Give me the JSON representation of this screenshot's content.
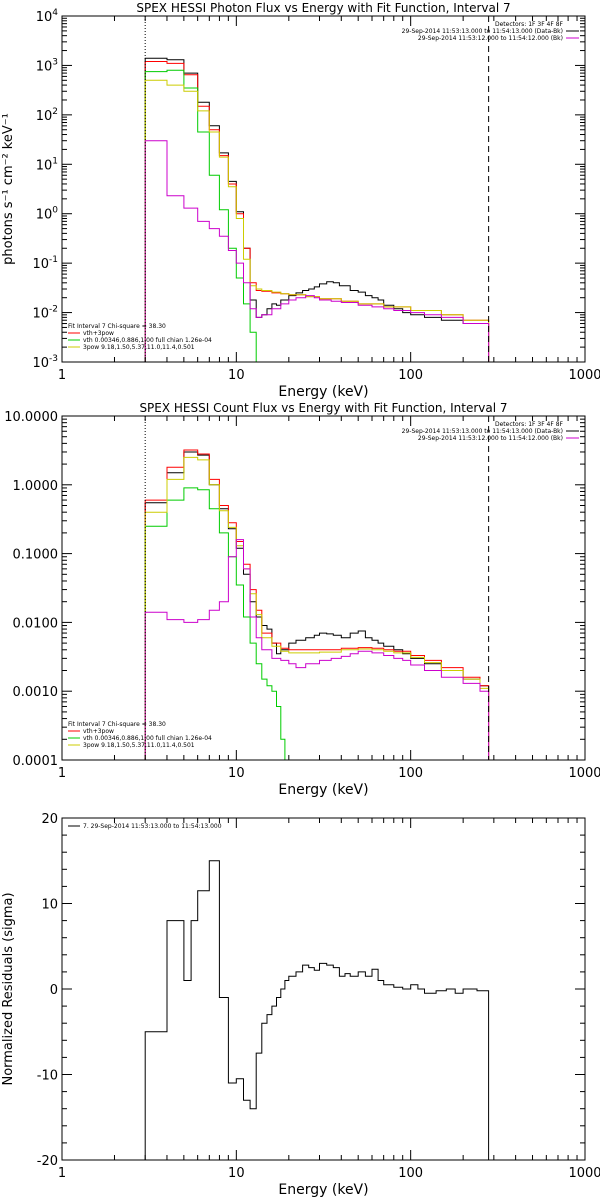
{
  "chart_data": [
    {
      "type": "line",
      "title": "SPEX HESSI Photon Flux vs Energy with Fit Function, Interval 7",
      "xlabel": "Energy (keV)",
      "ylabel": "photons s⁻¹ cm⁻² keV⁻¹",
      "xscale": "log",
      "yscale": "log",
      "xlim": [
        1,
        1000
      ],
      "ylim": [
        0.001,
        10000
      ],
      "xticks": [
        {
          "v": 1,
          "label": "1"
        },
        {
          "v": 10,
          "label": "10"
        },
        {
          "v": 100,
          "label": "100"
        },
        {
          "v": 1000,
          "label": "1000"
        }
      ],
      "yticks": [
        {
          "v": 0.001,
          "base": "10",
          "exp": "-3"
        },
        {
          "v": 0.01,
          "base": "10",
          "exp": "-2"
        },
        {
          "v": 0.1,
          "base": "10",
          "exp": "-1"
        },
        {
          "v": 1,
          "base": "10",
          "exp": "0"
        },
        {
          "v": 10,
          "base": "10",
          "exp": "1"
        },
        {
          "v": 100,
          "base": "10",
          "exp": "2"
        },
        {
          "v": 1000,
          "base": "10",
          "exp": "3"
        },
        {
          "v": 10000,
          "base": "10",
          "exp": "4"
        }
      ],
      "vlines": [
        {
          "x": 3.0,
          "color": "#000000",
          "style": "dotted"
        },
        {
          "x": 280,
          "color": "#000000",
          "style": "dashed"
        }
      ],
      "legend_top": {
        "position": "top-right",
        "header": "Detectors: 1F 3F 4F 8F",
        "entries": [
          {
            "text": "29-Sep-2014 11:53:13.000 to 11:54:13.000 (Data-Bk)",
            "color": "#000000"
          },
          {
            "text": "29-Sep-2014 11:53:12.000 to 11:54:12.000 (Bk)",
            "color": "#cc00cc"
          }
        ]
      },
      "legend_bottom": {
        "position": "bottom-left",
        "header": "Fit Interval 7   Chi-square = 38.30",
        "entries": [
          {
            "text": "vth+3pow",
            "color": "#ff0000"
          },
          {
            "text": "vth 0.00346,0.886,1.00  full chian 1.26e-04",
            "color": "#00cc00"
          },
          {
            "text": "3pow 9.18,1.50,5.37,11.0,11.4,0.501",
            "color": "#cccc00"
          }
        ]
      },
      "series": [
        {
          "color": "#000000",
          "edges": [
            3.0,
            4.0,
            5.0,
            6.0,
            7.0,
            8.0,
            9.0,
            10.0,
            11.0,
            12.0,
            13.0,
            14.0,
            15.0,
            16.0,
            17.0,
            18.0,
            20.0,
            22.0,
            24.0,
            26.0,
            28.0,
            30.0,
            33.0,
            36.0,
            39.0,
            42.0,
            45.0,
            50.0,
            55.0,
            60.0,
            65.0,
            70.0,
            80.0,
            90.0,
            100.0,
            120.0,
            150.0,
            200.0,
            280.0
          ],
          "values": [
            1400,
            1300,
            700,
            180,
            60,
            17,
            4.5,
            1.1,
            0.2,
            0.018,
            0.008,
            0.009,
            0.012,
            0.015,
            0.014,
            0.018,
            0.022,
            0.025,
            0.028,
            0.03,
            0.033,
            0.038,
            0.042,
            0.04,
            0.035,
            0.035,
            0.028,
            0.026,
            0.022,
            0.02,
            0.018,
            0.014,
            0.012,
            0.01,
            0.009,
            0.008,
            0.007,
            0.006
          ]
        },
        {
          "color": "#ff0000",
          "edges": [
            3.0,
            4.0,
            5.0,
            6.0,
            7.0,
            8.0,
            9.0,
            10.0,
            11.0,
            12.0,
            13.0,
            14.0,
            16.0,
            18.0,
            20.0,
            25.0,
            30.0,
            40.0,
            50.0,
            70.0,
            100.0,
            150.0,
            200.0,
            280.0
          ],
          "values": [
            1200,
            1100,
            650,
            150,
            50,
            15,
            4,
            1,
            0.2,
            0.04,
            0.028,
            0.027,
            0.025,
            0.024,
            0.023,
            0.021,
            0.019,
            0.017,
            0.015,
            0.013,
            0.011,
            0.009,
            0.007
          ]
        },
        {
          "color": "#00cc00",
          "edges": [
            3.0,
            4.0,
            5.0,
            6.0,
            7.0,
            8.0,
            9.0,
            10.0,
            11.0,
            12.0,
            13.0,
            14.0
          ],
          "values": [
            750,
            800,
            350,
            45,
            6,
            1.2,
            0.2,
            0.05,
            0.015,
            0.004,
            0.001
          ]
        },
        {
          "color": "#cccc00",
          "edges": [
            3.0,
            4.0,
            5.0,
            6.0,
            7.0,
            8.0,
            9.0,
            10.0,
            11.0,
            12.0,
            13.0,
            14.0,
            16.0,
            18.0,
            20.0,
            25.0,
            30.0,
            40.0,
            50.0,
            70.0,
            100.0,
            150.0,
            200.0,
            280.0
          ],
          "values": [
            500,
            400,
            300,
            120,
            45,
            14,
            3.5,
            0.8,
            0.12,
            0.035,
            0.03,
            0.028,
            0.026,
            0.024,
            0.023,
            0.021,
            0.019,
            0.017,
            0.015,
            0.013,
            0.011,
            0.009,
            0.007
          ]
        },
        {
          "color": "#cc00cc",
          "edges": [
            3.0,
            4.0,
            5.0,
            6.0,
            7.0,
            8.0,
            9.0,
            10.0,
            11.0,
            12.0,
            13.0,
            14.0,
            16.0,
            18.0,
            20.0,
            22.0,
            25.0,
            28.0,
            30.0,
            35.0,
            40.0,
            50.0,
            60.0,
            70.0,
            80.0,
            100.0,
            120.0,
            150.0,
            200.0,
            280.0
          ],
          "values": [
            30,
            2.3,
            1.3,
            0.7,
            0.5,
            0.35,
            0.18,
            0.1,
            0.04,
            0.012,
            0.008,
            0.009,
            0.012,
            0.015,
            0.018,
            0.02,
            0.022,
            0.02,
            0.018,
            0.017,
            0.016,
            0.014,
            0.013,
            0.012,
            0.011,
            0.01,
            0.009,
            0.008,
            0.006
          ]
        }
      ]
    },
    {
      "type": "line",
      "title": "SPEX HESSI Count Flux vs Energy with Fit Function, Interval 7",
      "xlabel": "Energy (keV)",
      "ylabel": "",
      "xscale": "log",
      "yscale": "log",
      "xlim": [
        1,
        1000
      ],
      "ylim": [
        0.0001,
        10
      ],
      "xticks": [
        {
          "v": 1,
          "label": "1"
        },
        {
          "v": 10,
          "label": "10"
        },
        {
          "v": 100,
          "label": "100"
        },
        {
          "v": 1000,
          "label": "1000"
        }
      ],
      "yticks": [
        {
          "v": 0.0001,
          "label": "0.0001"
        },
        {
          "v": 0.001,
          "label": "0.0010"
        },
        {
          "v": 0.01,
          "label": "0.0100"
        },
        {
          "v": 0.1,
          "label": "0.1000"
        },
        {
          "v": 1,
          "label": "1.0000"
        },
        {
          "v": 10,
          "label": "10.0000"
        }
      ],
      "vlines": [
        {
          "x": 3.0,
          "color": "#000000",
          "style": "dotted"
        },
        {
          "x": 280,
          "color": "#000000",
          "style": "dashed"
        }
      ],
      "legend_top": {
        "position": "top-right",
        "header": "Detectors: 1F 3F 4F 8F",
        "entries": [
          {
            "text": "29-Sep-2014 11:53:13.000 to 11:54:13.000 (Data-Bk)",
            "color": "#000000"
          },
          {
            "text": "29-Sep-2014 11:53:12.000 to 11:54:12.000 (Bk)",
            "color": "#cc00cc"
          }
        ]
      },
      "legend_bottom": {
        "position": "bottom-left",
        "header": "Fit Interval 7   Chi-square = 38.30",
        "entries": [
          {
            "text": "vth+3pow",
            "color": "#ff0000"
          },
          {
            "text": "vth 0.00346,0.886,1.00  full chian 1.26e-04",
            "color": "#00cc00"
          },
          {
            "text": "3pow 9.18,1.50,5.37,11.0,11.4,0.501",
            "color": "#cccc00"
          }
        ]
      },
      "series": [
        {
          "color": "#000000",
          "edges": [
            3.0,
            4.0,
            5.0,
            6.0,
            7.0,
            8.0,
            9.0,
            10.0,
            11.0,
            12.0,
            13.0,
            14.0,
            15.0,
            16.0,
            17.0,
            18.0,
            20.0,
            22.0,
            25.0,
            28.0,
            30.0,
            33.0,
            36.0,
            40.0,
            45.0,
            50.0,
            55.0,
            60.0,
            65.0,
            70.0,
            80.0,
            90.0,
            100.0,
            120.0,
            150.0,
            200.0,
            250.0,
            280.0
          ],
          "values": [
            0.55,
            1.5,
            3.0,
            2.7,
            1.0,
            0.45,
            0.23,
            0.12,
            0.05,
            0.02,
            0.012,
            0.009,
            0.008,
            0.005,
            0.0035,
            0.004,
            0.005,
            0.0055,
            0.006,
            0.0065,
            0.007,
            0.0068,
            0.0065,
            0.006,
            0.007,
            0.0075,
            0.006,
            0.0055,
            0.005,
            0.0045,
            0.004,
            0.0035,
            0.003,
            0.0025,
            0.002,
            0.0015,
            0.0012
          ]
        },
        {
          "color": "#ff0000",
          "edges": [
            3.0,
            4.0,
            5.0,
            6.0,
            7.0,
            8.0,
            9.0,
            10.0,
            11.0,
            12.0,
            13.0,
            14.0,
            16.0,
            18.0,
            20.0,
            25.0,
            30.0,
            40.0,
            50.0,
            60.0,
            70.0,
            80.0,
            100.0,
            120.0,
            150.0,
            200.0,
            250.0,
            280.0
          ],
          "values": [
            0.6,
            1.8,
            3.2,
            2.8,
            1.2,
            0.5,
            0.28,
            0.15,
            0.07,
            0.03,
            0.015,
            0.007,
            0.005,
            0.0042,
            0.004,
            0.004,
            0.004,
            0.0042,
            0.0043,
            0.0042,
            0.004,
            0.0038,
            0.0033,
            0.0028,
            0.0022,
            0.0016,
            0.0012
          ]
        },
        {
          "color": "#00cc00",
          "edges": [
            3.0,
            4.0,
            5.0,
            6.0,
            7.0,
            8.0,
            9.0,
            10.0,
            11.0,
            12.0,
            13.0,
            14.0,
            15.0,
            16.0,
            17.0,
            18.0,
            19.0,
            20.0
          ],
          "values": [
            0.25,
            0.6,
            0.9,
            0.85,
            0.45,
            0.2,
            0.09,
            0.035,
            0.012,
            0.005,
            0.0025,
            0.0015,
            0.0012,
            0.001,
            0.0006,
            0.0002,
            0.0001
          ]
        },
        {
          "color": "#cccc00",
          "edges": [
            3.0,
            4.0,
            5.0,
            6.0,
            7.0,
            8.0,
            9.0,
            10.0,
            11.0,
            12.0,
            13.0,
            14.0,
            16.0,
            18.0,
            20.0,
            25.0,
            30.0,
            40.0,
            50.0,
            60.0,
            70.0,
            80.0,
            100.0,
            120.0,
            150.0,
            200.0,
            250.0,
            280.0
          ],
          "values": [
            0.4,
            1.2,
            2.5,
            2.3,
            1.0,
            0.42,
            0.24,
            0.13,
            0.06,
            0.026,
            0.013,
            0.006,
            0.0045,
            0.0038,
            0.0036,
            0.0036,
            0.0037,
            0.004,
            0.0041,
            0.004,
            0.0038,
            0.0036,
            0.0031,
            0.0026,
            0.002,
            0.0015,
            0.0011
          ]
        },
        {
          "color": "#cc00cc",
          "edges": [
            3.0,
            4.0,
            5.0,
            6.0,
            7.0,
            8.0,
            9.0,
            10.0,
            11.0,
            12.0,
            13.0,
            14.0,
            16.0,
            18.0,
            20.0,
            22.0,
            25.0,
            30.0,
            35.0,
            40.0,
            45.0,
            50.0,
            60.0,
            70.0,
            80.0,
            90.0,
            100.0,
            120.0,
            150.0,
            200.0,
            250.0,
            280.0
          ],
          "values": [
            0.014,
            0.011,
            0.01,
            0.011,
            0.015,
            0.02,
            0.09,
            0.16,
            0.06,
            0.012,
            0.006,
            0.004,
            0.003,
            0.0028,
            0.0025,
            0.0022,
            0.0025,
            0.0028,
            0.003,
            0.0032,
            0.0035,
            0.0038,
            0.0036,
            0.0033,
            0.003,
            0.0028,
            0.0024,
            0.002,
            0.0016,
            0.0013,
            0.001
          ]
        }
      ]
    },
    {
      "type": "line",
      "title": "",
      "xlabel": "Energy (keV)",
      "ylabel": "Normalized Residuals (sigma)",
      "xscale": "log",
      "yscale": "linear",
      "xlim": [
        1,
        1000
      ],
      "ylim": [
        -20,
        20
      ],
      "xticks": [
        {
          "v": 1,
          "label": "1"
        },
        {
          "v": 10,
          "label": "10"
        },
        {
          "v": 100,
          "label": "100"
        },
        {
          "v": 1000,
          "label": "1000"
        }
      ],
      "yticks": [
        {
          "v": -20,
          "label": "-20"
        },
        {
          "v": -10,
          "label": "-10"
        },
        {
          "v": 0,
          "label": "0"
        },
        {
          "v": 10,
          "label": "10"
        },
        {
          "v": 20,
          "label": "20"
        }
      ],
      "legend_top": {
        "position": "top-left",
        "header": "",
        "entries": [
          {
            "text": "7. 29-Sep-2014 11:53:13.000 to 11:54:13.000",
            "color": "#000000"
          }
        ]
      },
      "series": [
        {
          "color": "#000000",
          "edges": [
            3.0,
            4.0,
            5.0,
            5.5,
            6.0,
            7.0,
            8.0,
            9.0,
            10.0,
            11.0,
            12.0,
            13.0,
            14.0,
            15.0,
            16.0,
            17.0,
            18.0,
            19.0,
            20.0,
            22.0,
            24.0,
            26.0,
            28.0,
            30.0,
            33.0,
            36.0,
            39.0,
            42.0,
            45.0,
            50.0,
            55.0,
            60.0,
            65.0,
            70.0,
            80.0,
            90.0,
            100.0,
            110.0,
            120.0,
            140.0,
            160.0,
            180.0,
            200.0,
            240.0,
            280.0
          ],
          "values": [
            -5,
            8,
            1,
            8,
            11.5,
            15,
            -1,
            -11,
            -10.5,
            -13,
            -14,
            -7.5,
            -4,
            -3,
            -2,
            -1,
            0,
            1,
            1.5,
            2,
            2.8,
            2.5,
            2.2,
            3,
            2.8,
            2.5,
            1.5,
            1.8,
            1.5,
            2,
            1.5,
            2.3,
            1,
            0.5,
            0.2,
            0,
            0.5,
            0,
            -0.5,
            -0.2,
            0,
            -0.5,
            0,
            -0.2
          ]
        }
      ]
    }
  ]
}
